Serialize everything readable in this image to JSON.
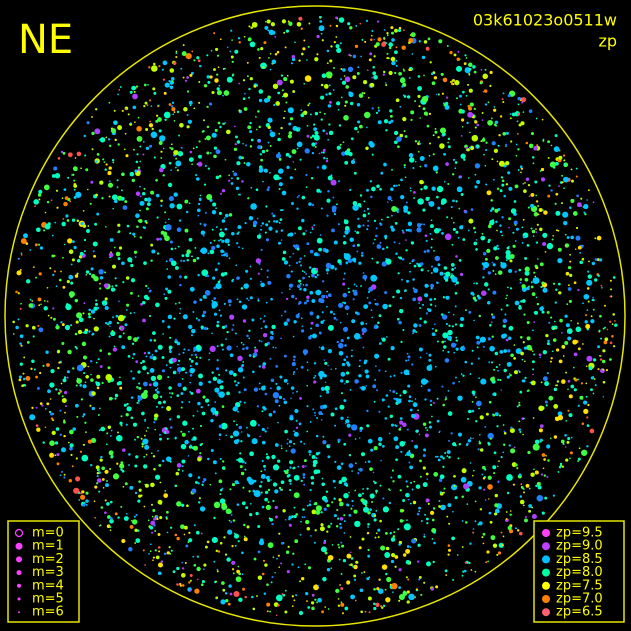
{
  "header": {
    "direction": "NE",
    "frame_id": "03k61023o0511w",
    "mode": "zp"
  },
  "legend_magnitude": [
    "m=0",
    "m=1",
    "m=2",
    "m=3",
    "m=4",
    "m=5",
    "m=6"
  ],
  "legend_zp": [
    "zp=9.5",
    "zp=9.0",
    "zp=8.5",
    "zp=8.0",
    "zp=7.5",
    "zp=7.0",
    "zp=6.5"
  ]
}
